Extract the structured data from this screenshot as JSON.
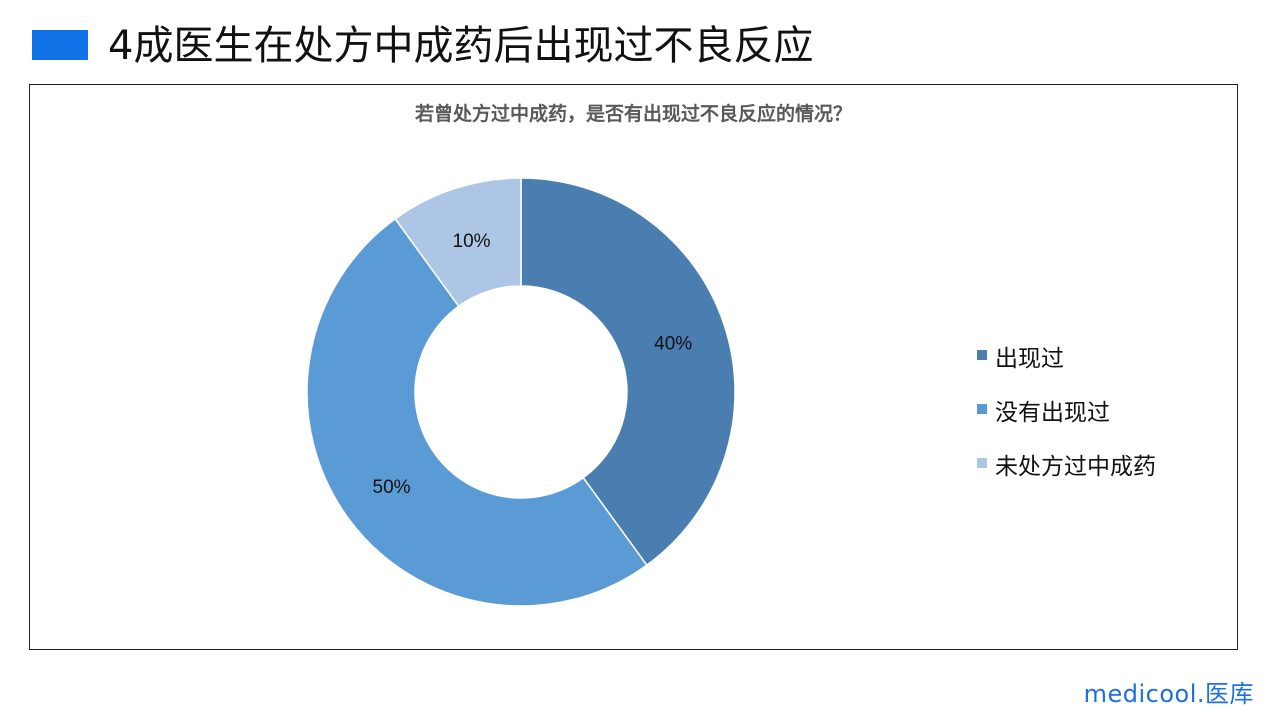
{
  "page": {
    "title": "4成医生在处方中成药后出现过不良反应",
    "accent_color": "#1273E8"
  },
  "brand": {
    "text": "medicool.医库",
    "color": "#1E6FE0"
  },
  "chart_data": {
    "type": "pie",
    "donut": true,
    "title": "若曾处方过中成药，是否有出现过不良反应的情况？",
    "legend_position": "right",
    "series": [
      {
        "name": "出现过",
        "value": 40,
        "label": "40%",
        "color": "#4A7EB0"
      },
      {
        "name": "没有出现过",
        "value": 50,
        "label": "50%",
        "color": "#5B9BD5"
      },
      {
        "name": "未处方过中成药",
        "value": 10,
        "label": "10%",
        "color": "#AEC6E6"
      }
    ]
  }
}
